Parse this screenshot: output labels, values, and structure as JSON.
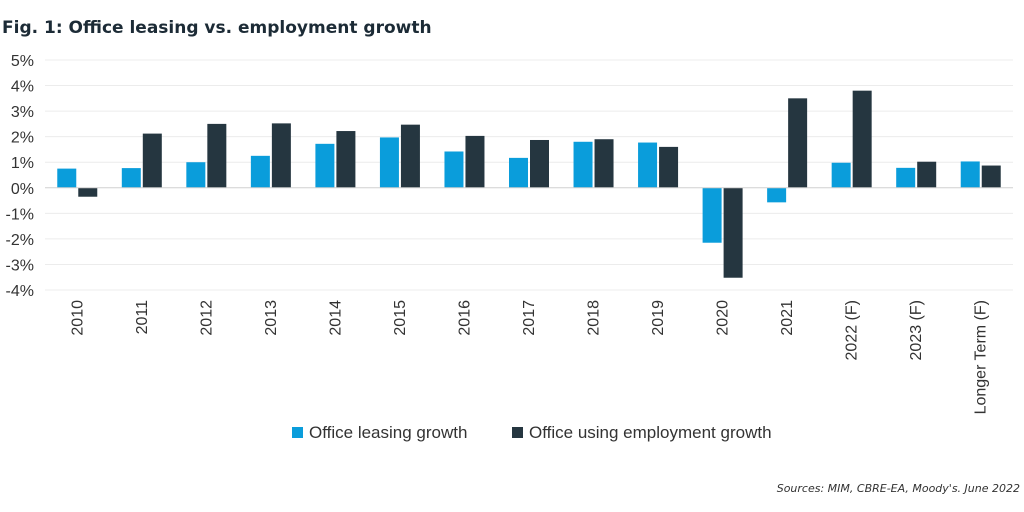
{
  "chart_data": {
    "type": "bar",
    "title": "Fig. 1: Office leasing vs. employment growth",
    "categories": [
      "2010",
      "2011",
      "2012",
      "2013",
      "2014",
      "2015",
      "2016",
      "2017",
      "2018",
      "2019",
      "2020",
      "2021",
      "2022 (F)",
      "2023 (F)",
      "Longer Term (F)"
    ],
    "series": [
      {
        "name": "Office leasing growth",
        "color": "#0a9ddb",
        "values": [
          0.75,
          0.77,
          1.0,
          1.25,
          1.72,
          1.97,
          1.42,
          1.17,
          1.8,
          1.77,
          -2.15,
          -0.57,
          0.98,
          0.78,
          1.03
        ]
      },
      {
        "name": "Office using employment growth",
        "color": "#253640",
        "values": [
          -0.35,
          2.12,
          2.5,
          2.52,
          2.22,
          2.47,
          2.03,
          1.87,
          1.9,
          1.6,
          -3.52,
          3.5,
          3.8,
          1.02,
          0.87
        ]
      }
    ],
    "ylim": [
      -4,
      5
    ],
    "yticks": [
      "5%",
      "4%",
      "3%",
      "2%",
      "1%",
      "0%",
      "-1%",
      "-2%",
      "-3%",
      "-4%"
    ],
    "xlabel": "",
    "ylabel": "",
    "legend_position": "bottom-center",
    "source": "Sources: MIM, CBRE-EA, Moody's. June 2022"
  }
}
